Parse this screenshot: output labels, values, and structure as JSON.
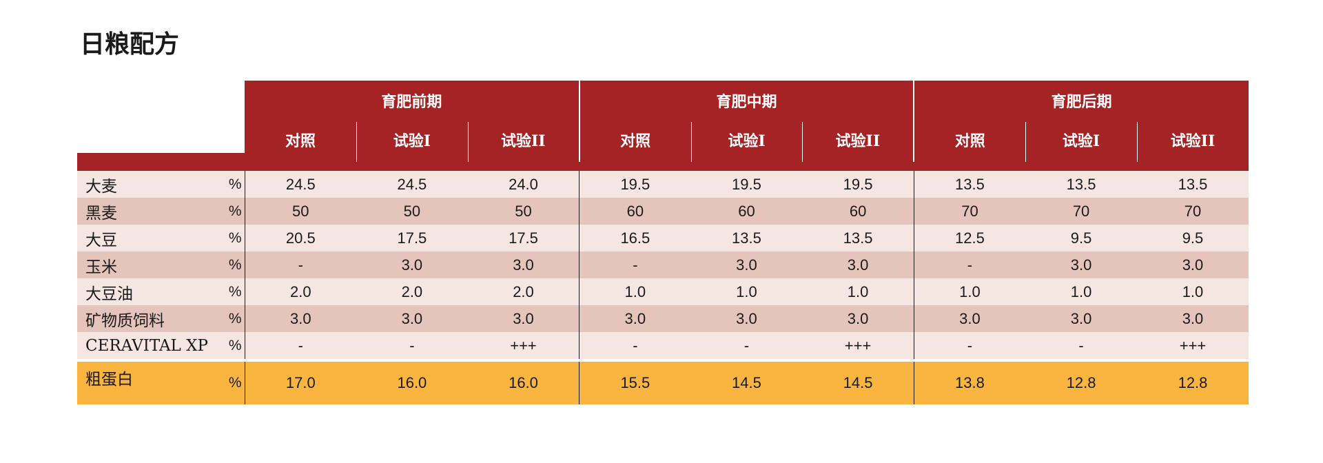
{
  "page_title": "日粮配方",
  "unit_label": "%",
  "phases": [
    {
      "label": "育肥前期"
    },
    {
      "label": "育肥中期"
    },
    {
      "label": "育肥后期"
    }
  ],
  "groups": [
    "对照",
    "试验I",
    "试验II"
  ],
  "rows": [
    {
      "name": "大麦",
      "unit": "%",
      "values": [
        "24.5",
        "24.5",
        "24.0",
        "19.5",
        "19.5",
        "19.5",
        "13.5",
        "13.5",
        "13.5"
      ]
    },
    {
      "name": "黑麦",
      "unit": "%",
      "values": [
        "50",
        "50",
        "50",
        "60",
        "60",
        "60",
        "70",
        "70",
        "70"
      ]
    },
    {
      "name": "大豆",
      "unit": "%",
      "values": [
        "20.5",
        "17.5",
        "17.5",
        "16.5",
        "13.5",
        "13.5",
        "12.5",
        "9.5",
        "9.5"
      ]
    },
    {
      "name": "玉米",
      "unit": "%",
      "values": [
        "-",
        "3.0",
        "3.0",
        "-",
        "3.0",
        "3.0",
        "-",
        "3.0",
        "3.0"
      ]
    },
    {
      "name": "大豆油",
      "unit": "%",
      "values": [
        "2.0",
        "2.0",
        "2.0",
        "1.0",
        "1.0",
        "1.0",
        "1.0",
        "1.0",
        "1.0"
      ]
    },
    {
      "name": "矿物质饲料",
      "unit": "%",
      "values": [
        "3.0",
        "3.0",
        "3.0",
        "3.0",
        "3.0",
        "3.0",
        "3.0",
        "3.0",
        "3.0"
      ]
    },
    {
      "name": "CERAVITAL XP",
      "unit": "%",
      "values": [
        "-",
        "-",
        "+++",
        "-",
        "-",
        "+++",
        "-",
        "-",
        "+++"
      ]
    }
  ],
  "total_row": {
    "name": "粗蛋白",
    "unit": "%",
    "values": [
      "17.0",
      "16.0",
      "16.0",
      "15.5",
      "14.5",
      "14.5",
      "13.8",
      "12.8",
      "12.8"
    ]
  },
  "colors": {
    "header_red": "#a52324",
    "row_light": "#f6e6e1",
    "row_dark": "#e5c5bb",
    "total_orange": "#f9b540"
  }
}
